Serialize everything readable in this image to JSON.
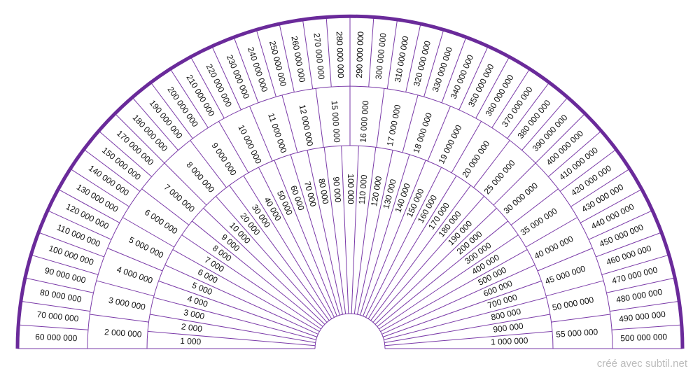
{
  "chart_data": {
    "type": "radial-pendulum-chart",
    "rings": [
      {
        "name": "inner",
        "labels": [
          "1 000",
          "2 000",
          "3 000",
          "4 000",
          "5 000",
          "6 000",
          "7 000",
          "8 000",
          "9 000",
          "10 000",
          "20 000",
          "30 000",
          "40 000",
          "50 000",
          "60 000",
          "70 000",
          "80 000",
          "90 000",
          "100 000",
          "110 000",
          "120 000",
          "130 000",
          "140 000",
          "150 000",
          "160 000",
          "170 000",
          "180 000",
          "190 000",
          "200 000",
          "300 000",
          "400 000",
          "500 000",
          "600 000",
          "700 000",
          "800 000",
          "900 000",
          "1 000 000"
        ]
      },
      {
        "name": "middle",
        "labels": [
          "2 000 000",
          "3 000 000",
          "4 000 000",
          "5 000 000",
          "6 000 000",
          "7 000 000",
          "8 000 000",
          "9 000 000",
          "10 000 000",
          "11 000 000",
          "12 000 000",
          "15 000 000",
          "16 000 000",
          "17 000 000",
          "18 000 000",
          "19 000 000",
          "20 000 000",
          "25 000 000",
          "30 000 000",
          "35 000 000",
          "40 000 000",
          "45 000 000",
          "50 000 000",
          "55 000 000"
        ]
      },
      {
        "name": "outer",
        "labels": [
          "60 000 000",
          "70 000 000",
          "80 000 000",
          "90 000 000",
          "100 000 000",
          "110 000 000",
          "120 000 000",
          "130 000 000",
          "140 000 000",
          "150 000 000",
          "170 000 000",
          "180 000 000",
          "190 000 000",
          "200 000 000",
          "210 000 000",
          "220 000 000",
          "230 000 000",
          "240 000 000",
          "250 000 000",
          "260 000 000",
          "270 000 000",
          "280 000 000",
          "290 000 000",
          "300 000 000",
          "310 000 000",
          "320 000 000",
          "330 000 000",
          "340 000 000",
          "350 000 000",
          "360 000 000",
          "370 000 000",
          "380 000 000",
          "390 000 000",
          "400 000 000",
          "410 000 000",
          "420 000 000",
          "430 000 000",
          "440 000 000",
          "450 000 000",
          "460 000 000",
          "470 000 000",
          "480 000 000",
          "490 000 000",
          "500 000 000"
        ]
      }
    ]
  },
  "colors": {
    "frame": "#6a2a9a",
    "lines": "#7a3aa8",
    "text": "#111111",
    "credit": "#bbbbbb"
  },
  "footer": {
    "credit": "créé avec subtil.net"
  }
}
